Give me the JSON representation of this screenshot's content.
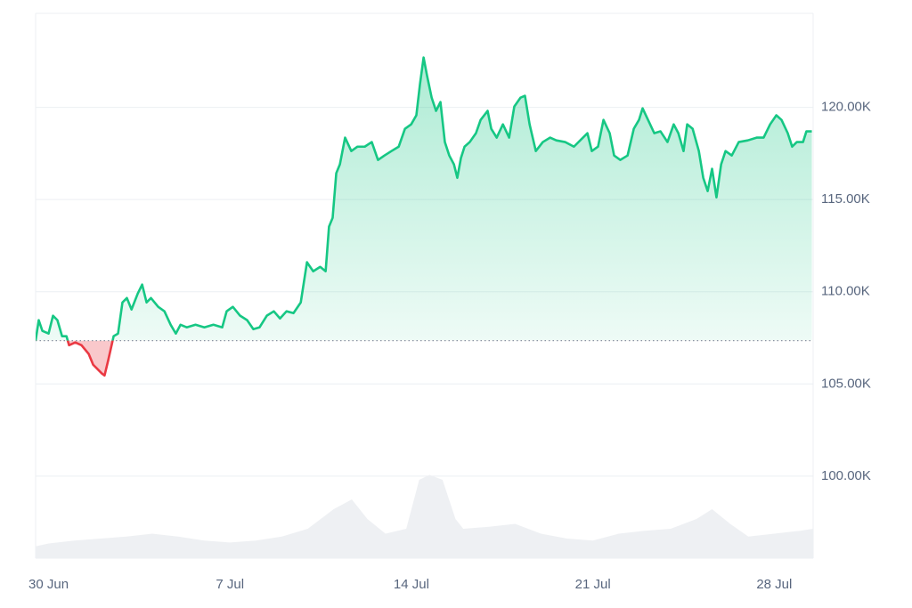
{
  "chart_data": {
    "type": "line",
    "xlim": [
      -0.5,
      29.5
    ],
    "xticks": [
      {
        "value": 0,
        "label": "30 Jun"
      },
      {
        "value": 7,
        "label": "7 Jul"
      },
      {
        "value": 14,
        "label": "14 Jul"
      },
      {
        "value": 21,
        "label": "21 Jul"
      },
      {
        "value": 28,
        "label": "28 Jul"
      }
    ],
    "ylim": [
      95550,
      125100
    ],
    "yticks": [
      {
        "value": 100000,
        "label": "100.00K"
      },
      {
        "value": 105000,
        "label": "105.00K"
      },
      {
        "value": 110000,
        "label": "110.00K"
      },
      {
        "value": 115000,
        "label": "115.00K"
      },
      {
        "value": 120000,
        "label": "120.00K"
      }
    ],
    "grid": true,
    "baseline": 107350,
    "up_color": "#16c784",
    "down_color": "#ea3943",
    "x": [
      -0.5,
      -0.38,
      -0.24,
      0,
      0.17,
      0.34,
      0.52,
      0.69,
      0.79,
      1.03,
      1.27,
      1.55,
      1.72,
      1.89,
      2.06,
      2.16,
      2.3,
      2.51,
      2.68,
      2.85,
      3.02,
      3.2,
      3.44,
      3.61,
      3.78,
      3.95,
      4.23,
      4.47,
      4.71,
      4.91,
      5.09,
      5.33,
      5.67,
      6.01,
      6.36,
      6.7,
      6.87,
      7.11,
      7.39,
      7.66,
      7.9,
      8.14,
      8.42,
      8.69,
      8.93,
      9.18,
      9.45,
      9.73,
      9.97,
      10.21,
      10.48,
      10.69,
      10.82,
      10.96,
      11.1,
      11.24,
      11.44,
      11.68,
      11.92,
      12.2,
      12.47,
      12.71,
      12.96,
      13.23,
      13.51,
      13.75,
      13.99,
      14.19,
      14.33,
      14.47,
      14.6,
      14.78,
      14.95,
      15.12,
      15.29,
      15.46,
      15.64,
      15.77,
      15.91,
      16.05,
      16.25,
      16.49,
      16.67,
      16.94,
      17.08,
      17.29,
      17.53,
      17.77,
      17.97,
      18.21,
      18.38,
      18.56,
      18.8,
      19.07,
      19.35,
      19.59,
      19.93,
      20.27,
      20.62,
      20.79,
      20.96,
      21.2,
      21.41,
      21.65,
      21.82,
      22.06,
      22.34,
      22.58,
      22.78,
      22.92,
      23.13,
      23.37,
      23.61,
      23.88,
      24.12,
      24.3,
      24.5,
      24.64,
      24.85,
      25.09,
      25.26,
      25.43,
      25.6,
      25.77,
      25.95,
      26.12,
      26.36,
      26.63,
      26.98,
      27.32,
      27.59,
      27.84,
      28.08,
      28.28,
      28.52,
      28.69,
      28.87,
      29.11,
      29.24,
      29.45
    ],
    "values": [
      107350,
      108460,
      107880,
      107730,
      108700,
      108460,
      107590,
      107590,
      107100,
      107250,
      107100,
      106620,
      106040,
      105800,
      105560,
      105460,
      106280,
      107590,
      107730,
      109420,
      109660,
      109040,
      109900,
      110390,
      109420,
      109660,
      109180,
      108940,
      108210,
      107730,
      108210,
      108070,
      108210,
      108070,
      108210,
      108070,
      108940,
      109180,
      108700,
      108460,
      107970,
      108070,
      108700,
      108940,
      108550,
      108940,
      108840,
      109420,
      111600,
      111110,
      111350,
      111110,
      113530,
      114010,
      116430,
      116910,
      118360,
      117630,
      117870,
      117870,
      118120,
      117150,
      117390,
      117630,
      117870,
      118840,
      119080,
      119570,
      121260,
      122705,
      121740,
      120530,
      119810,
      120290,
      118120,
      117390,
      116910,
      116180,
      117250,
      117870,
      118120,
      118600,
      119320,
      119810,
      118840,
      118360,
      119080,
      118360,
      120050,
      120530,
      120630,
      119080,
      117630,
      118120,
      118360,
      118210,
      118120,
      117870,
      118360,
      118600,
      117630,
      117870,
      119320,
      118600,
      117390,
      117150,
      117390,
      118840,
      119320,
      119950,
      119320,
      118600,
      118700,
      118120,
      119080,
      118600,
      117630,
      119080,
      118840,
      117630,
      116180,
      115460,
      116670,
      115120,
      116910,
      117630,
      117390,
      118120,
      118210,
      118360,
      118360,
      119080,
      119570,
      119320,
      118600,
      117870,
      118120,
      118120,
      118700,
      118700
    ],
    "volume": {
      "color": "#eef0f3",
      "ylim": [
        0,
        100
      ],
      "x": [
        -0.5,
        0,
        1,
        2,
        3,
        4,
        5,
        6,
        7,
        8,
        9,
        10,
        11,
        11.7,
        12.3,
        13,
        13.8,
        14.3,
        14.7,
        15.2,
        15.7,
        16,
        17,
        18,
        19,
        20,
        21,
        22,
        23,
        24,
        25,
        25.6,
        26.3,
        27,
        28,
        29,
        29.5
      ],
      "values": [
        12,
        15,
        18,
        20,
        22,
        25,
        22,
        18,
        16,
        18,
        22,
        30,
        50,
        60,
        40,
        25,
        30,
        80,
        85,
        80,
        40,
        30,
        32,
        35,
        25,
        20,
        18,
        25,
        28,
        30,
        40,
        50,
        35,
        22,
        25,
        28,
        30
      ]
    }
  }
}
